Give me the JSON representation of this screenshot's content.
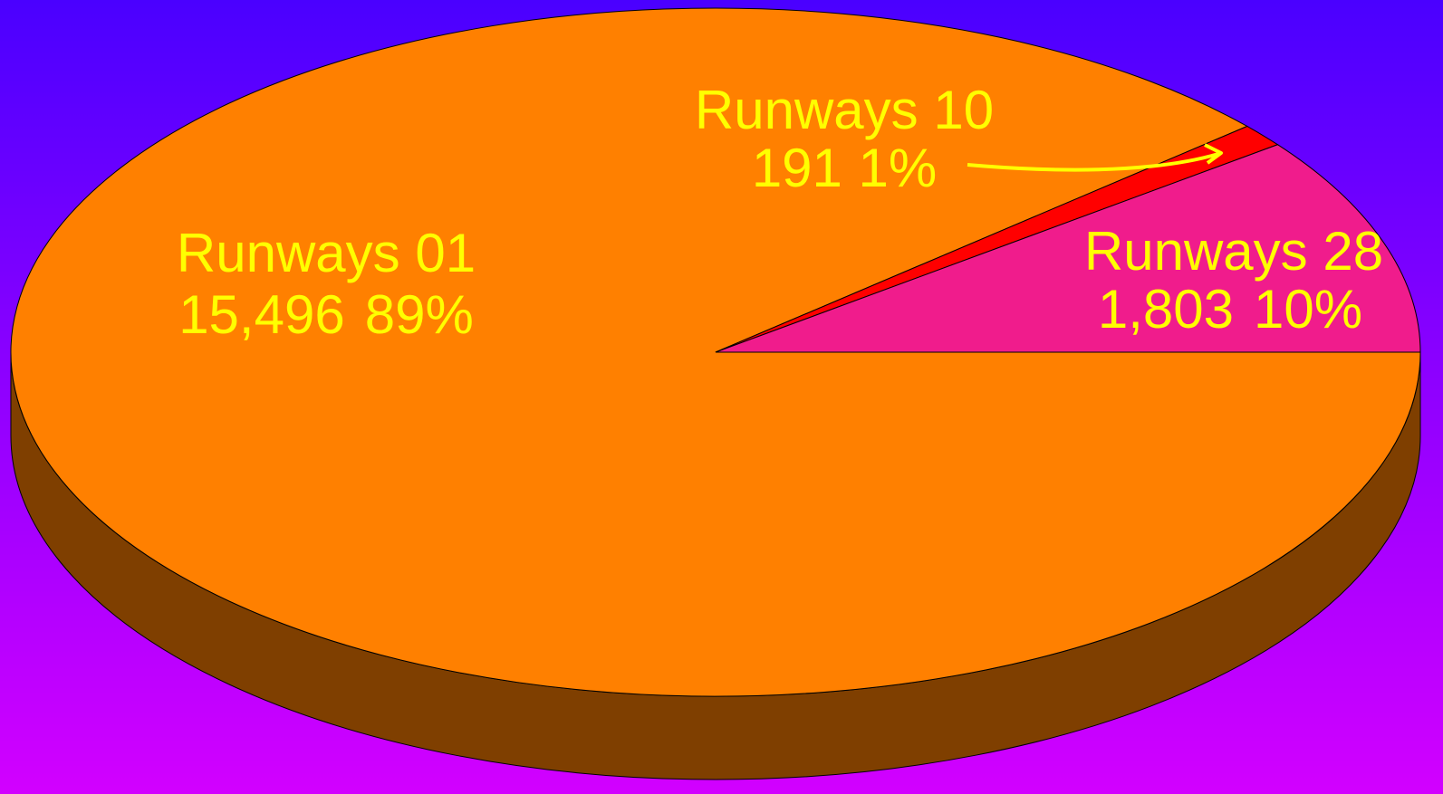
{
  "chart_data": {
    "type": "pie",
    "style": "3d",
    "slices": [
      {
        "name": "Runways 01",
        "value": 15496,
        "percent_label": "89%",
        "value_label": "15,496",
        "color": "#ff8000",
        "side_color": "#7f3f00"
      },
      {
        "name": "Runways 10",
        "value": 191,
        "percent_label": "1%",
        "value_label": "191",
        "color": "#ff0000",
        "side_color": "#7f0000"
      },
      {
        "name": "Runways 28",
        "value": 1803,
        "percent_label": "10%",
        "value_label": "1,803",
        "color": "#f01c8c",
        "side_color": "#781046"
      }
    ],
    "label_color": "#ffff00",
    "background_colors": [
      "#4a00ff",
      "#d200ff"
    ]
  }
}
